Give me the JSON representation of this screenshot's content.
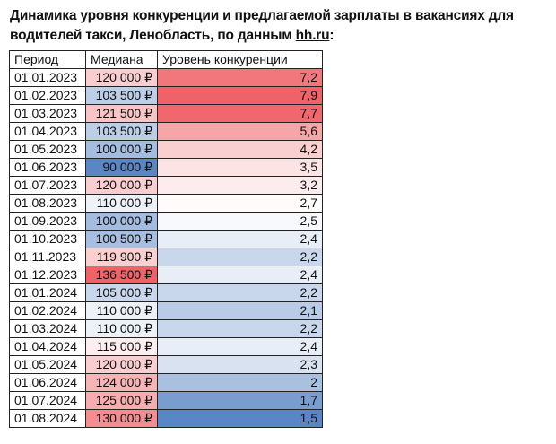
{
  "title": {
    "text": "Динамика уровня конкуренции и предлагаемой зарплаты в вакансиях для водителей такси, Ленобласть, по данным ",
    "link": "hh.ru",
    "suffix": ":"
  },
  "table": {
    "headers": [
      "Период",
      "Медиана",
      "Уровень конкуренции"
    ],
    "rows": [
      {
        "period": "01.01.2023",
        "median": "120 000 ₽",
        "level": "7,2",
        "median_value": 120000,
        "level_value": 7.2
      },
      {
        "period": "01.02.2023",
        "median": "103 500 ₽",
        "level": "7,9",
        "median_value": 103500,
        "level_value": 7.9
      },
      {
        "period": "01.03.2023",
        "median": "121 500 ₽",
        "level": "7,7",
        "median_value": 121500,
        "level_value": 7.7
      },
      {
        "period": "01.04.2023",
        "median": "103 500 ₽",
        "level": "5,6",
        "median_value": 103500,
        "level_value": 5.6
      },
      {
        "period": "01.05.2023",
        "median": "100 000 ₽",
        "level": "4,2",
        "median_value": 100000,
        "level_value": 4.2
      },
      {
        "period": "01.06.2023",
        "median": "90 000 ₽",
        "level": "3,5",
        "median_value": 90000,
        "level_value": 3.5
      },
      {
        "period": "01.07.2023",
        "median": "120 000 ₽",
        "level": "3,2",
        "median_value": 120000,
        "level_value": 3.2
      },
      {
        "period": "01.08.2023",
        "median": "110 000 ₽",
        "level": "2,7",
        "median_value": 110000,
        "level_value": 2.7
      },
      {
        "period": "01.09.2023",
        "median": "100 000 ₽",
        "level": "2,5",
        "median_value": 100000,
        "level_value": 2.5
      },
      {
        "period": "01.10.2023",
        "median": "100 500 ₽",
        "level": "2,4",
        "median_value": 100500,
        "level_value": 2.4
      },
      {
        "period": "01.11.2023",
        "median": "119 900 ₽",
        "level": "2,2",
        "median_value": 119900,
        "level_value": 2.2
      },
      {
        "period": "01.12.2023",
        "median": "136 500 ₽",
        "level": "2,4",
        "median_value": 136500,
        "level_value": 2.4
      },
      {
        "period": "01.01.2024",
        "median": "105 000 ₽",
        "level": "2,2",
        "median_value": 105000,
        "level_value": 2.2
      },
      {
        "period": "01.02.2024",
        "median": "110 000 ₽",
        "level": "2,1",
        "median_value": 110000,
        "level_value": 2.1
      },
      {
        "period": "01.03.2024",
        "median": "110 000 ₽",
        "level": "2,2",
        "median_value": 110000,
        "level_value": 2.2
      },
      {
        "period": "01.04.2024",
        "median": "115 000 ₽",
        "level": "2,4",
        "median_value": 115000,
        "level_value": 2.4
      },
      {
        "period": "01.05.2024",
        "median": "120 000 ₽",
        "level": "2,3",
        "median_value": 120000,
        "level_value": 2.3
      },
      {
        "period": "01.06.2024",
        "median": "124 000 ₽",
        "level": "2",
        "median_value": 124000,
        "level_value": 2
      },
      {
        "period": "01.07.2024",
        "median": "125 000 ₽",
        "level": "1,7",
        "median_value": 125000,
        "level_value": 1.7
      },
      {
        "period": "01.08.2024",
        "median": "130 000 ₽",
        "level": "1,5",
        "median_value": 130000,
        "level_value": 1.5
      }
    ]
  },
  "colors": {
    "scale_low": "#5b86c5",
    "scale_mid": "#ffffff",
    "scale_high": "#ef6268",
    "border": "#222222"
  }
}
